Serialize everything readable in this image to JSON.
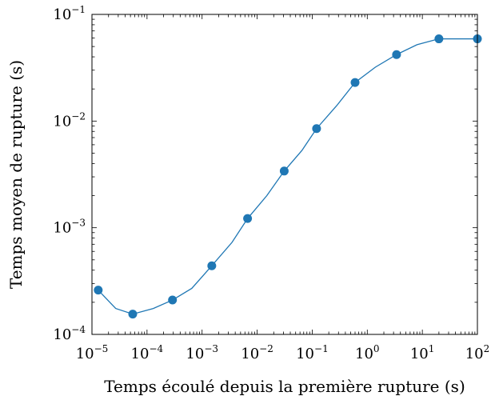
{
  "chart_data": {
    "type": "line",
    "xlabel": "Temps écoulé depuis la première rupture (s)",
    "ylabel": "Temps moyen de rupture (s)",
    "xscale": "log",
    "yscale": "log",
    "xlim": [
      1e-05,
      100
    ],
    "ylim": [
      0.0001,
      0.1
    ],
    "x_ticks": [
      {
        "base": "10",
        "exp": "−5"
      },
      {
        "base": "10",
        "exp": "−4"
      },
      {
        "base": "10",
        "exp": "−3"
      },
      {
        "base": "10",
        "exp": "−2"
      },
      {
        "base": "10",
        "exp": "−1"
      },
      {
        "base": "10",
        "exp": "0"
      },
      {
        "base": "10",
        "exp": "1"
      },
      {
        "base": "10",
        "exp": "2"
      }
    ],
    "y_ticks": [
      {
        "base": "10",
        "exp": "−4"
      },
      {
        "base": "10",
        "exp": "−3"
      },
      {
        "base": "10",
        "exp": "−2"
      },
      {
        "base": "10",
        "exp": "−1"
      }
    ],
    "grid": false,
    "color": "#1f77b4",
    "series": [
      {
        "x": [
          1.3e-05,
          2.7e-05,
          5.5e-05,
          0.00013,
          0.00029,
          0.00065,
          0.0015,
          0.0035,
          0.0067,
          0.015,
          0.031,
          0.065,
          0.12,
          0.28,
          0.6,
          1.4,
          3.4,
          8,
          20,
          50,
          100
        ],
        "y": [
          0.00026,
          0.000175,
          0.000155,
          0.000175,
          0.00021,
          0.00027,
          0.00044,
          0.00073,
          0.00122,
          0.002,
          0.0034,
          0.0053,
          0.0085,
          0.014,
          0.023,
          0.032,
          0.042,
          0.052,
          0.059,
          0.059,
          0.059
        ]
      }
    ],
    "markers": {
      "x": [
        1.3e-05,
        5.5e-05,
        0.00029,
        0.0015,
        0.0067,
        0.031,
        0.12,
        0.6,
        3.4,
        20,
        100
      ],
      "y": [
        0.00026,
        0.000155,
        0.00021,
        0.00044,
        0.00122,
        0.0034,
        0.0085,
        0.023,
        0.042,
        0.059,
        0.059
      ]
    }
  }
}
